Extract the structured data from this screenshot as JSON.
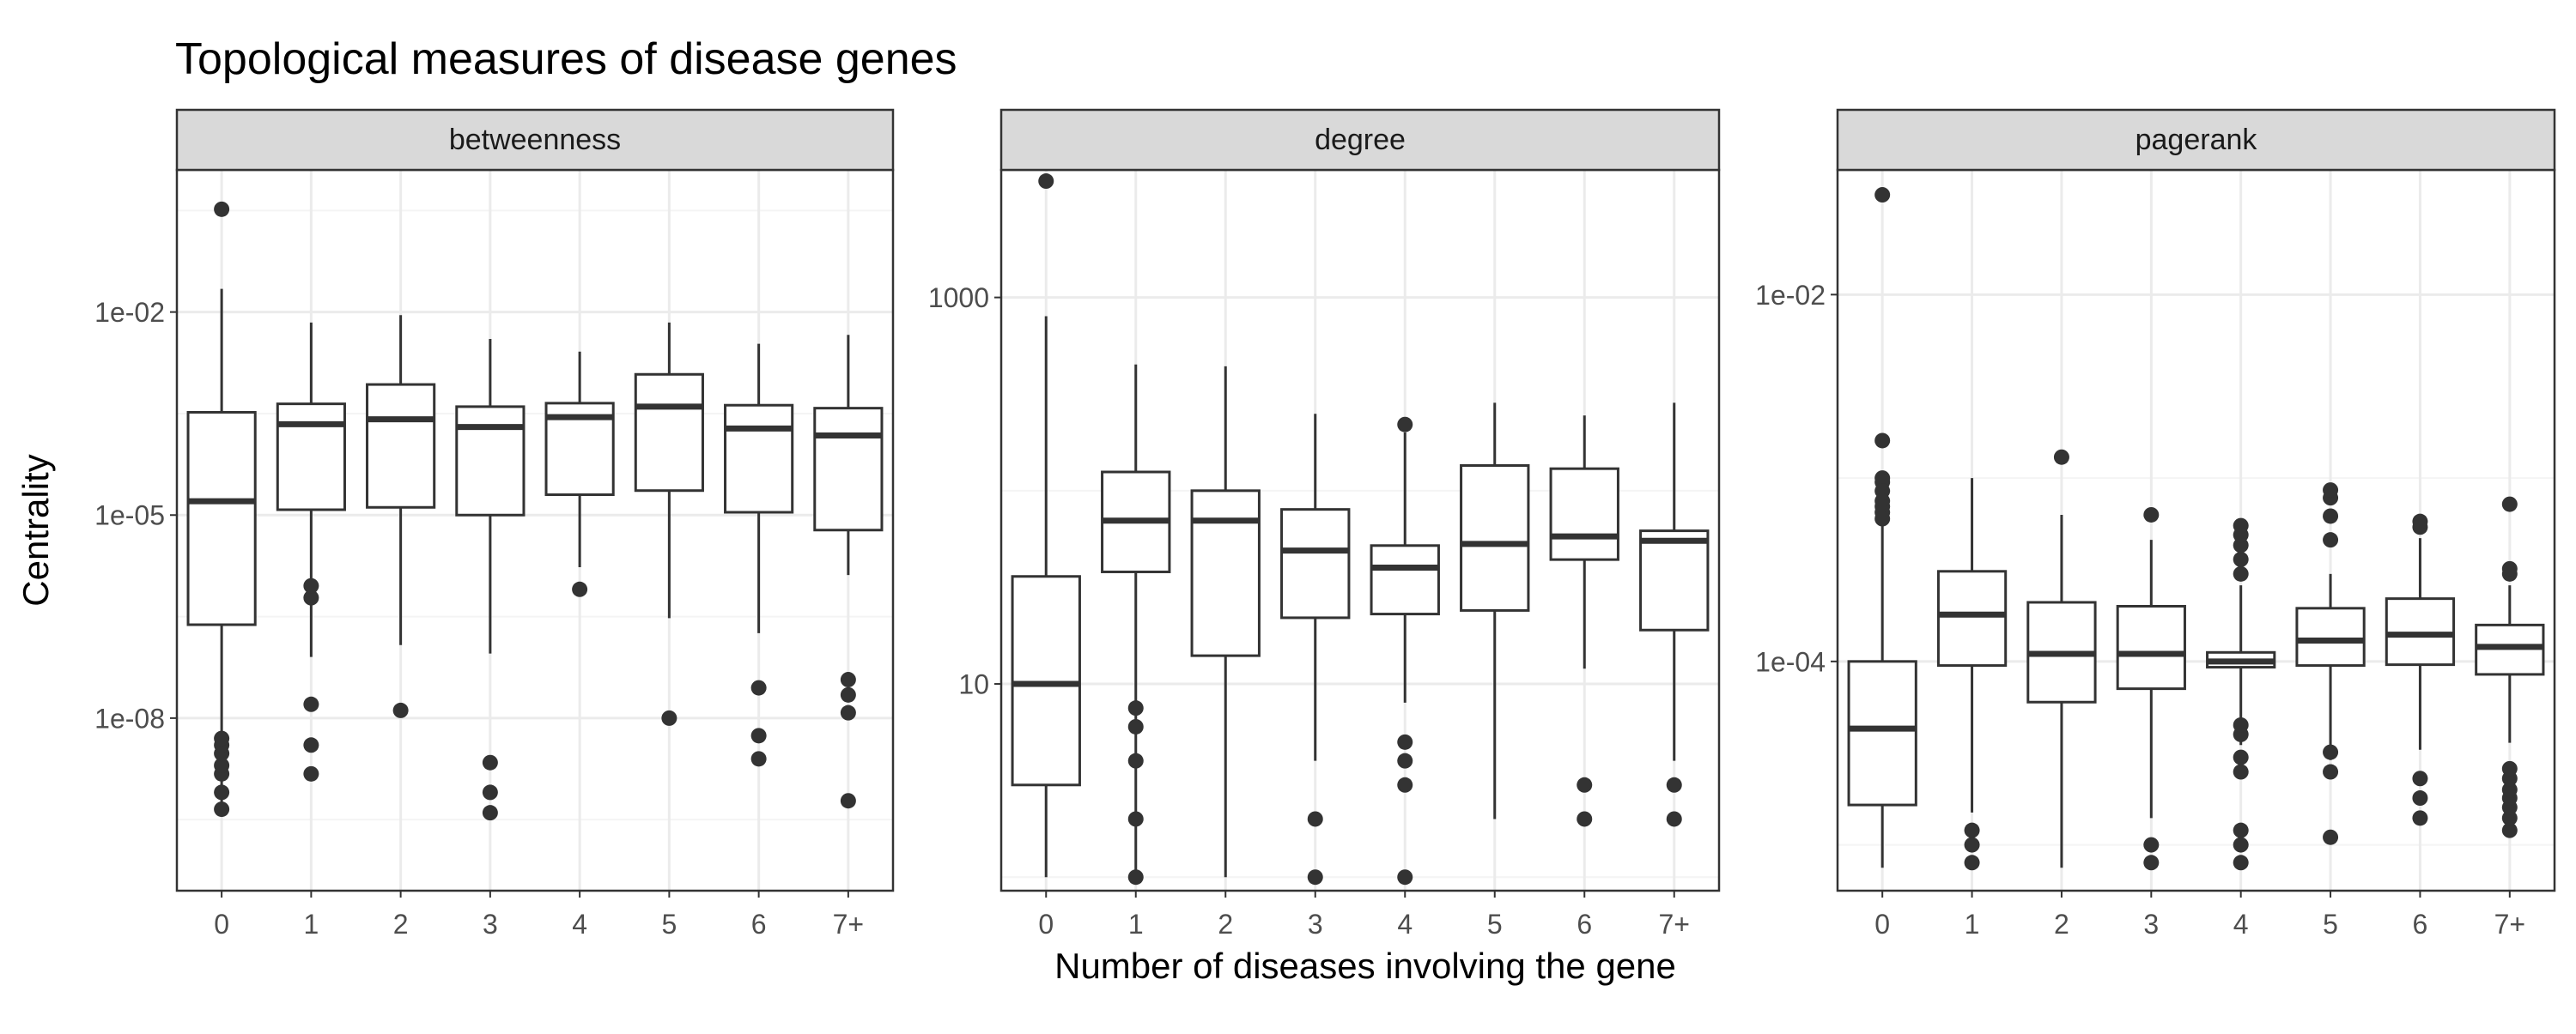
{
  "chart_data": {
    "type": "boxplot",
    "title": "Topological measures of disease genes",
    "xlabel": "Number of diseases involving the gene",
    "ylabel": "Centrality",
    "categories": [
      "0",
      "1",
      "2",
      "3",
      "4",
      "5",
      "6",
      "7+"
    ],
    "scale": "log10",
    "grid": true,
    "colors": {
      "box_stroke": "#333333",
      "strip_fill": "#d9d9d9",
      "panel_border": "#333333",
      "grid_major": "#ebebeb",
      "grid_minor": "#f4f4f4"
    },
    "panels": [
      {
        "name": "betweenness",
        "ylim_log10": [
          -10.55,
          0.1
        ],
        "yticks": [
          {
            "label": "1e-02",
            "log10": -2
          },
          {
            "label": "1e-05",
            "log10": -5
          },
          {
            "label": "1e-08",
            "log10": -8
          }
        ],
        "boxes": [
          {
            "x": "0",
            "q1": 2.4e-07,
            "median": 1.6e-05,
            "q3": 0.00033,
            "whisker_low": 4.5e-10,
            "whisker_high": 0.022,
            "outliers": [
              4.5e-10,
              8e-10,
              1.5e-09,
              2e-09,
              3e-09,
              4e-09,
              5e-09,
              0.33
            ]
          },
          {
            "x": "1",
            "q1": 1.2e-05,
            "median": 0.00022,
            "q3": 0.00044,
            "whisker_low": 8e-08,
            "whisker_high": 0.007,
            "outliers": [
              6e-07,
              9e-07,
              1.6e-08,
              4e-09,
              1.5e-09
            ]
          },
          {
            "x": "2",
            "q1": 1.3e-05,
            "median": 0.00026,
            "q3": 0.00085,
            "whisker_low": 1.2e-07,
            "whisker_high": 0.009,
            "outliers": [
              1.3e-08
            ]
          },
          {
            "x": "3",
            "q1": 1e-05,
            "median": 0.0002,
            "q3": 0.0004,
            "whisker_low": 9e-08,
            "whisker_high": 0.004,
            "outliers": [
              2.2e-09,
              8e-10,
              4e-10
            ]
          },
          {
            "x": "4",
            "q1": 2e-05,
            "median": 0.00028,
            "q3": 0.00045,
            "whisker_low": 1.7e-06,
            "whisker_high": 0.0026,
            "outliers": [
              8e-07
            ]
          },
          {
            "x": "5",
            "q1": 2.3e-05,
            "median": 0.0004,
            "q3": 0.0012,
            "whisker_low": 3e-07,
            "whisker_high": 0.007,
            "outliers": [
              1e-08
            ]
          },
          {
            "x": "6",
            "q1": 1.1e-05,
            "median": 0.00019,
            "q3": 0.00042,
            "whisker_low": 1.8e-07,
            "whisker_high": 0.0034,
            "outliers": [
              2.5e-09,
              5.5e-09,
              2.8e-08
            ]
          },
          {
            "x": "7+",
            "q1": 6e-06,
            "median": 0.00015,
            "q3": 0.00038,
            "whisker_low": 1.3e-06,
            "whisker_high": 0.0046,
            "outliers": [
              6e-10,
              1.2e-08,
              2.2e-08,
              3.7e-08
            ]
          }
        ]
      },
      {
        "name": "degree",
        "ylim_log10": [
          -0.07,
          3.66
        ],
        "yticks": [
          {
            "label": "1000",
            "log10": 3
          },
          {
            "label": "10",
            "log10": 1
          }
        ],
        "boxes": [
          {
            "x": "0",
            "q1": 3,
            "median": 10,
            "q3": 36,
            "whisker_low": 1,
            "whisker_high": 800,
            "outliers": [
              4000
            ]
          },
          {
            "x": "1",
            "q1": 38,
            "median": 70,
            "q3": 125,
            "whisker_low": 1,
            "whisker_high": 450,
            "outliers": [
              1,
              2,
              4,
              6,
              7.5
            ]
          },
          {
            "x": "2",
            "q1": 14,
            "median": 70,
            "q3": 100,
            "whisker_low": 1,
            "whisker_high": 440,
            "outliers": []
          },
          {
            "x": "3",
            "q1": 22,
            "median": 49,
            "q3": 80,
            "whisker_low": 4,
            "whisker_high": 250,
            "outliers": [
              1,
              2
            ]
          },
          {
            "x": "4",
            "q1": 23,
            "median": 40,
            "q3": 52,
            "whisker_low": 8,
            "whisker_high": 200,
            "outliers": [
              1,
              3,
              4,
              5,
              220
            ]
          },
          {
            "x": "5",
            "q1": 24,
            "median": 53,
            "q3": 135,
            "whisker_low": 2,
            "whisker_high": 285,
            "outliers": []
          },
          {
            "x": "6",
            "q1": 44,
            "median": 58,
            "q3": 130,
            "whisker_low": 12,
            "whisker_high": 245,
            "outliers": [
              2,
              3
            ]
          },
          {
            "x": "7+",
            "q1": 19,
            "median": 55,
            "q3": 62,
            "whisker_low": 4,
            "whisker_high": 285,
            "outliers": [
              2,
              3
            ]
          }
        ]
      },
      {
        "name": "pagerank",
        "ylim_log10": [
          -5.25,
          -1.32
        ],
        "yticks": [
          {
            "label": "1e-02",
            "log10": -2
          },
          {
            "label": "1e-04",
            "log10": -4
          }
        ],
        "boxes": [
          {
            "x": "0",
            "q1": 1.65e-05,
            "median": 4.3e-05,
            "q3": 0.0001,
            "whisker_low": 7.5e-06,
            "whisker_high": 0.00068,
            "outliers": [
              0.0016,
              0.001,
              0.00095,
              0.00085,
              0.00075,
              0.0007,
              0.00065,
              0.0006,
              0.035
            ]
          },
          {
            "x": "1",
            "q1": 9.5e-05,
            "median": 0.00018,
            "q3": 0.00031,
            "whisker_low": 1.5e-05,
            "whisker_high": 0.001,
            "outliers": [
              8e-06,
              1e-05,
              1.2e-05
            ]
          },
          {
            "x": "2",
            "q1": 6e-05,
            "median": 0.00011,
            "q3": 0.00021,
            "whisker_low": 7.5e-06,
            "whisker_high": 0.00063,
            "outliers": [
              0.0013
            ]
          },
          {
            "x": "3",
            "q1": 7.1e-05,
            "median": 0.00011,
            "q3": 0.0002,
            "whisker_low": 1.4e-05,
            "whisker_high": 0.00046,
            "outliers": [
              8e-06,
              1e-05,
              0.00063
            ]
          },
          {
            "x": "4",
            "q1": 9.3e-05,
            "median": 0.0001,
            "q3": 0.000112,
            "whisker_low": 3.5e-05,
            "whisker_high": 0.00026,
            "outliers": [
              8e-06,
              1e-05,
              1.2e-05,
              2.5e-05,
              3e-05,
              4e-05,
              4.5e-05,
              0.0003,
              0.00036,
              0.00043,
              0.00049,
              0.00055
            ]
          },
          {
            "x": "5",
            "q1": 9.5e-05,
            "median": 0.00013,
            "q3": 0.000195,
            "whisker_low": 2.9e-05,
            "whisker_high": 0.0003,
            "outliers": [
              1.1e-05,
              2.5e-05,
              3.2e-05,
              0.00046,
              0.00062,
              0.00078,
              0.00086
            ]
          },
          {
            "x": "6",
            "q1": 9.6e-05,
            "median": 0.00014,
            "q3": 0.00022,
            "whisker_low": 3.3e-05,
            "whisker_high": 0.00047,
            "outliers": [
              1.4e-05,
              1.8e-05,
              2.3e-05,
              0.00054,
              0.00058
            ]
          },
          {
            "x": "7+",
            "q1": 8.5e-05,
            "median": 0.00012,
            "q3": 0.000158,
            "whisker_low": 3.6e-05,
            "whisker_high": 0.00026,
            "outliers": [
              1.2e-05,
              1.4e-05,
              1.6e-05,
              1.8e-05,
              2e-05,
              2.3e-05,
              2.6e-05,
              0.0003,
              0.00032,
              0.00072
            ]
          }
        ]
      }
    ]
  }
}
